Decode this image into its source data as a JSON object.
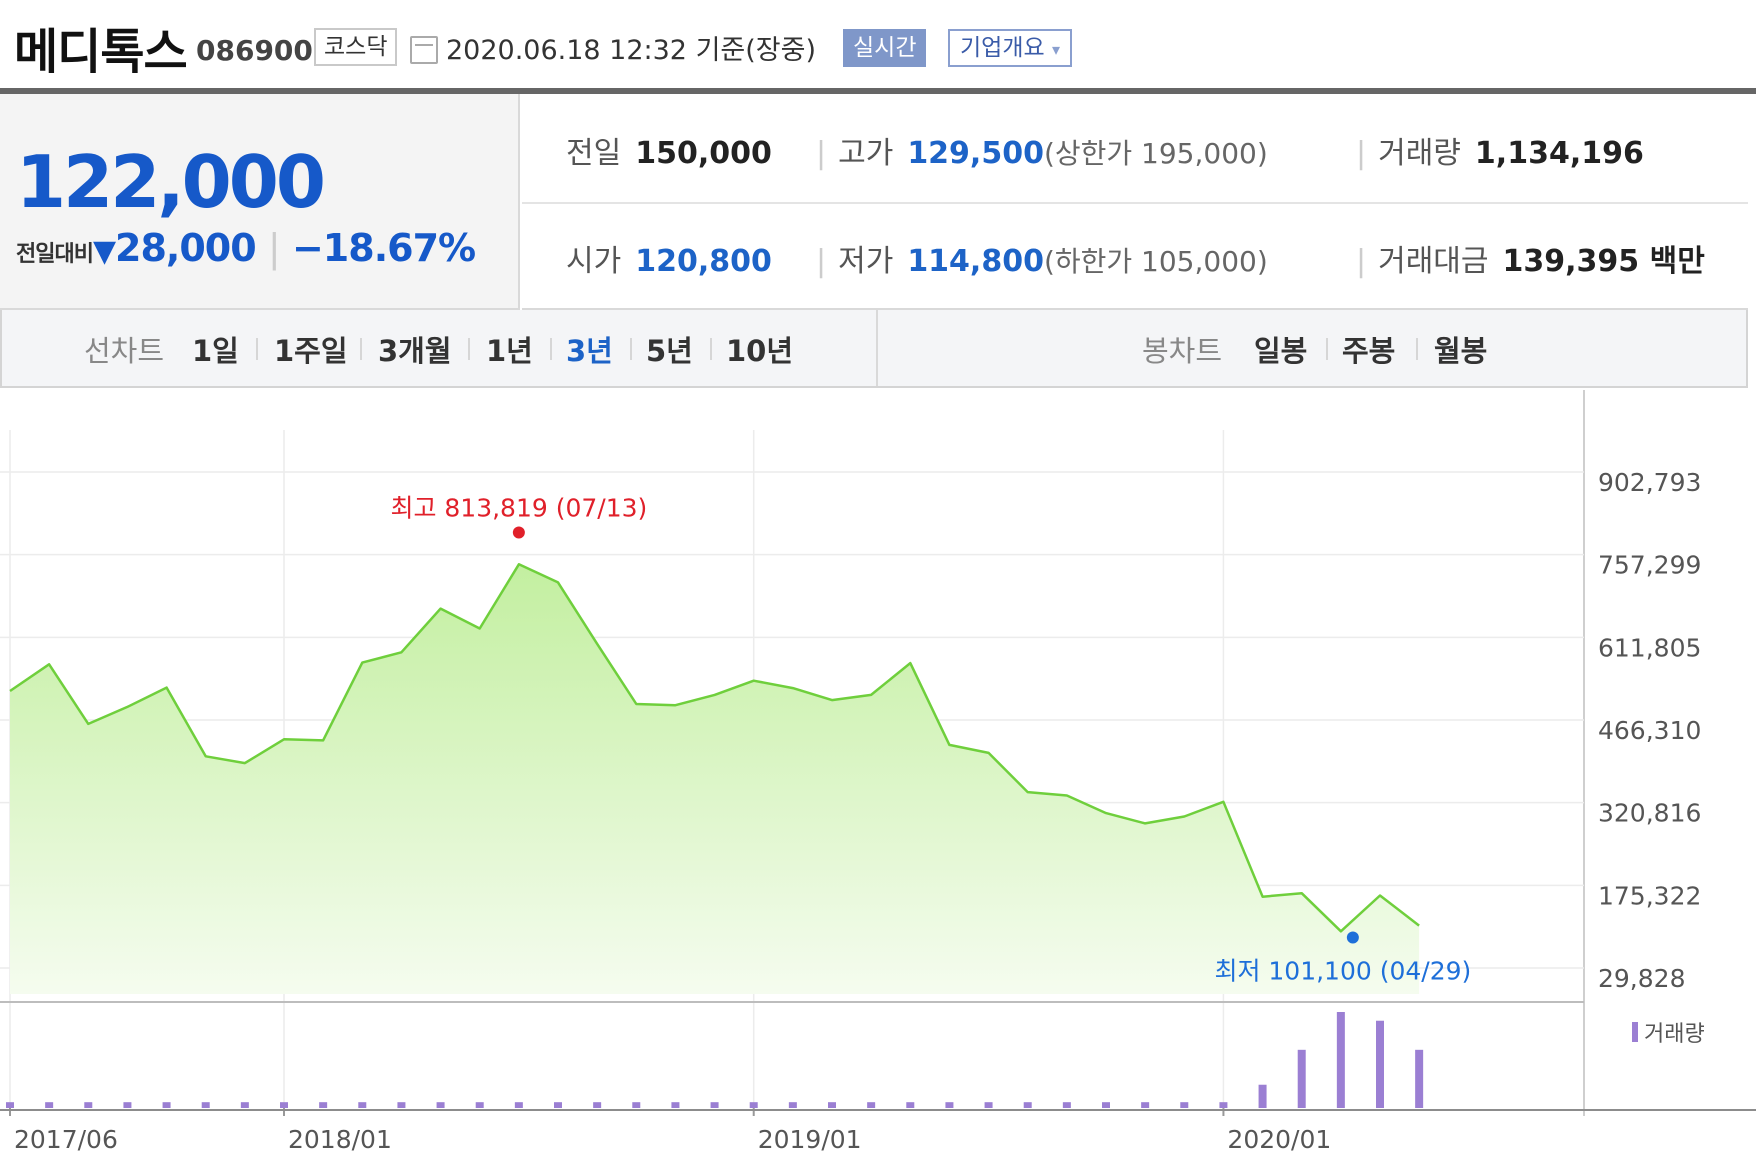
{
  "header": {
    "name": "메디톡스",
    "code": "086900",
    "market": "코스닥",
    "timestamp": "2020.06.18 12:32  기준(장중)",
    "realtime_btn": "실시간",
    "company_btn": "기업개요",
    "company_btn_caret": "▾"
  },
  "price": {
    "current": "122,000",
    "change_label": "전일대비",
    "change_arrow": "▼",
    "change_value": "28,000",
    "change_sep": "|",
    "change_pct": "−18.67%",
    "colors": {
      "down": "#1659c9",
      "high": "#e0202a"
    }
  },
  "stats": {
    "prev_close": {
      "label": "전일",
      "value": "150,000"
    },
    "open": {
      "label": "시가",
      "value": "120,800"
    },
    "high": {
      "label": "고가",
      "value": "129,500",
      "sub": "(상한가 195,000)"
    },
    "low": {
      "label": "저가",
      "value": "114,800",
      "sub": "(하한가 105,000)"
    },
    "volume": {
      "label": "거래량",
      "value": "1,134,196"
    },
    "amount": {
      "label": "거래대금",
      "value": "139,395 백만"
    },
    "sep": "|"
  },
  "tabs": {
    "line_label": "선차트",
    "line": [
      "1일",
      "1주일",
      "3개월",
      "1년",
      "3년",
      "5년",
      "10년"
    ],
    "active": "3년",
    "candle_label": "봉차트",
    "candle": [
      "일봉",
      "주봉",
      "월봉"
    ]
  },
  "chart_data": {
    "type": "area",
    "x": [
      "2017-06",
      "2017-07",
      "2017-08",
      "2017-09",
      "2017-10",
      "2017-11",
      "2017-12",
      "2018-01",
      "2018-02",
      "2018-03",
      "2018-04",
      "2018-05",
      "2018-06",
      "2018-07",
      "2018-08",
      "2018-09",
      "2018-10",
      "2018-11",
      "2018-12",
      "2019-01",
      "2019-02",
      "2019-03",
      "2019-04",
      "2019-05",
      "2019-06",
      "2019-07",
      "2019-08",
      "2019-09",
      "2019-10",
      "2019-11",
      "2019-12",
      "2020-01",
      "2020-02",
      "2020-03",
      "2020-04",
      "2020-05",
      "2020-06"
    ],
    "series": [
      {
        "values": [
          535000,
          582000,
          477000,
          507000,
          541000,
          420000,
          408000,
          450000,
          448000,
          585000,
          603000,
          680000,
          645000,
          758000,
          726000,
          618000,
          512000,
          510000,
          528000,
          553000,
          540000,
          519000,
          528000,
          584000,
          440000,
          426000,
          357000,
          351000,
          320000,
          302000,
          314000,
          340000,
          173000,
          179000,
          112000,
          175000,
          122000
        ],
        "color": "#6fcf3c",
        "fill": "#c3efa0"
      },
      {
        "name": "거래량",
        "values": [
          2,
          2,
          2,
          2,
          2,
          2,
          2,
          2,
          2,
          2,
          2,
          2,
          2,
          2,
          2,
          2,
          2,
          2,
          2,
          2,
          2,
          2,
          2,
          2,
          2,
          2,
          2,
          2,
          2,
          2,
          2,
          2,
          8,
          20,
          33,
          30,
          20
        ],
        "color": "#9b7fd3"
      }
    ],
    "y_ticks": [
      "902,793",
      "757,299",
      "611,805",
      "466,310",
      "320,816",
      "175,322",
      "29,828"
    ],
    "ylim": [
      29828,
      902793
    ],
    "x_ticks": [
      {
        "label": "2017/06",
        "at": "2017-06"
      },
      {
        "label": "2018/01",
        "at": "2018-01"
      },
      {
        "label": "2019/01",
        "at": "2019-01"
      },
      {
        "label": "2020/01",
        "at": "2020-01"
      }
    ],
    "max_annotation": {
      "label": "최고",
      "value": "813,819",
      "date": "(07/13)",
      "y": 813819,
      "at": "2018-07"
    },
    "min_annotation": {
      "label": "최저",
      "value": "101,100",
      "date": "(04/29)",
      "y": 101100,
      "at": "2020-04"
    },
    "grid": true
  }
}
